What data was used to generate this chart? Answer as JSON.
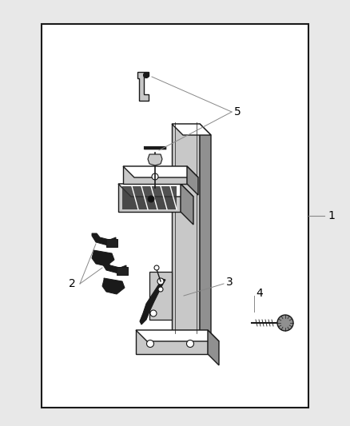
{
  "background_color": "#e8e8e8",
  "border_color": "#1a1a1a",
  "label_1": "1",
  "label_2": "2",
  "label_3": "3",
  "label_4": "4",
  "label_5": "5",
  "line_color": "#1a1a1a",
  "lgray": "#c8c8c8",
  "mgray": "#909090",
  "dgray": "#505050",
  "white": "#ffffff",
  "dark": "#1a1a1a",
  "label_font_size": 10,
  "annot_color": "#888888"
}
